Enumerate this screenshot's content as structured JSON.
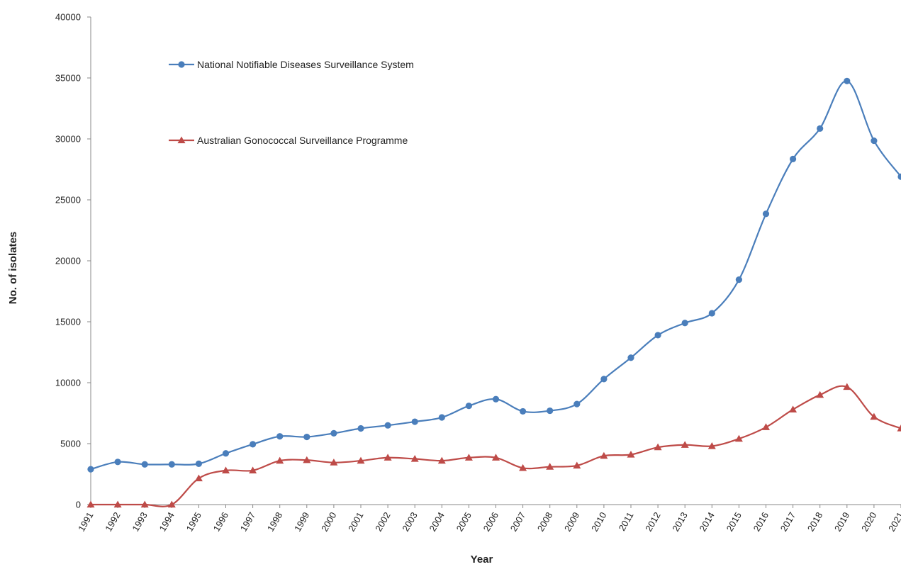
{
  "chart_data": {
    "type": "line",
    "title": "",
    "xlabel": "Year",
    "ylabel": "No. of isolates",
    "ylim": [
      0,
      40000
    ],
    "yticks": [
      0,
      5000,
      10000,
      15000,
      20000,
      25000,
      30000,
      35000,
      40000
    ],
    "grid": false,
    "legend_placement": "top-left",
    "categories": [
      "1991",
      "1992",
      "1993",
      "1994",
      "1995",
      "1996",
      "1997",
      "1998",
      "1999",
      "2000",
      "2001",
      "2002",
      "2003",
      "2004",
      "2005",
      "2006",
      "2007",
      "2008",
      "2009",
      "2010",
      "2011",
      "2012",
      "2013",
      "2014",
      "2015",
      "2016",
      "2017",
      "2018",
      "2019",
      "2020",
      "2021"
    ],
    "series": [
      {
        "name": "National Notifiable Diseases Surveillance System",
        "color": "#4a7ebb",
        "marker": "circle",
        "values": [
          2900,
          3500,
          3300,
          3300,
          3350,
          4200,
          4950,
          5600,
          5550,
          5850,
          6250,
          6500,
          6800,
          7150,
          8100,
          8650,
          7650,
          7700,
          8250,
          10300,
          12050,
          13900,
          14900,
          15700,
          18450,
          23850,
          28350,
          30850,
          34750,
          29850,
          26900
        ]
      },
      {
        "name": "Australian Gonococcal Surveillance Programme",
        "color": "#be4b48",
        "marker": "triangle",
        "values": [
          0,
          0,
          0,
          0,
          2150,
          2800,
          2800,
          3600,
          3650,
          3450,
          3600,
          3850,
          3750,
          3600,
          3850,
          3850,
          3000,
          3100,
          3200,
          4000,
          4100,
          4700,
          4900,
          4800,
          5400,
          6350,
          7800,
          9000,
          9650,
          7200,
          6250
        ]
      }
    ]
  }
}
